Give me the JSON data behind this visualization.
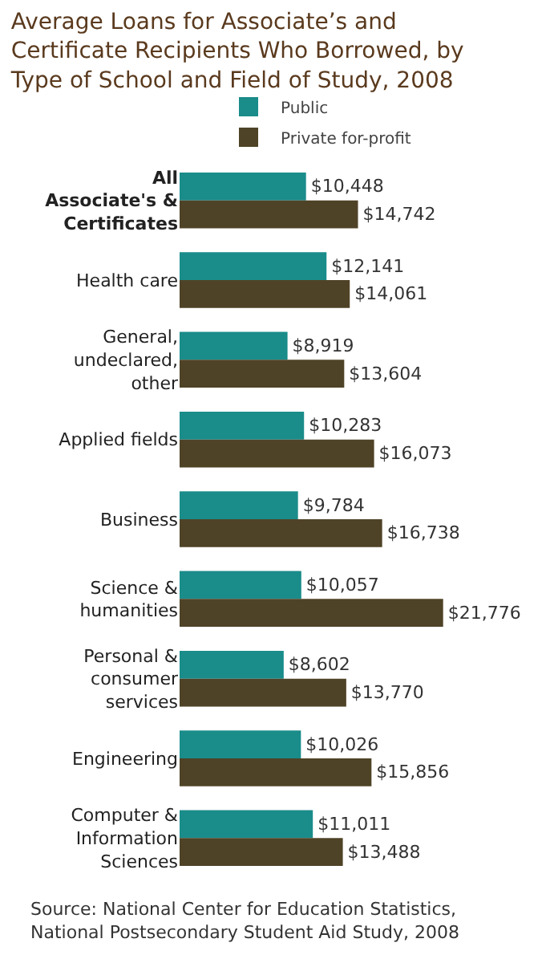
{
  "chart_data": {
    "type": "bar",
    "orientation": "horizontal",
    "title": "Average Loans for Associate’s and Certificate Recipients Who Borrowed, by Type of School and Field of Study, 2008",
    "categories": [
      "All Associate's & Certificates",
      "Health care",
      "General, undeclared, other",
      "Applied fields",
      "Business",
      "Science & humanities",
      "Personal & consumer services",
      "Engineering",
      "Computer & Information Sciences"
    ],
    "series": [
      {
        "name": "Public",
        "color": "#1a8c8a",
        "values": [
          10448,
          12141,
          8919,
          10283,
          9784,
          10057,
          8602,
          10026,
          11011
        ],
        "value_labels": [
          "$10,448",
          "$12,141",
          "$8,919",
          "$10,283",
          "$9,784",
          "$10,057",
          "$8,602",
          "$10,026",
          "$11,011"
        ]
      },
      {
        "name": "Private for-profit",
        "color": "#4f4327",
        "values": [
          14742,
          14061,
          13604,
          16073,
          16738,
          21776,
          13770,
          15856,
          13488
        ],
        "value_labels": [
          "$14,742",
          "$14,061",
          "$13,604",
          "$16,073",
          "$16,738",
          "$21,776",
          "$13,770",
          "$15,856",
          "$13,488"
        ]
      }
    ],
    "tick_labels": "y",
    "grid": false,
    "legend": "top",
    "annotations": [
      "Source: National Center for Education Statistics, National Postsecondary Student Aid Study, 2008"
    ]
  }
}
